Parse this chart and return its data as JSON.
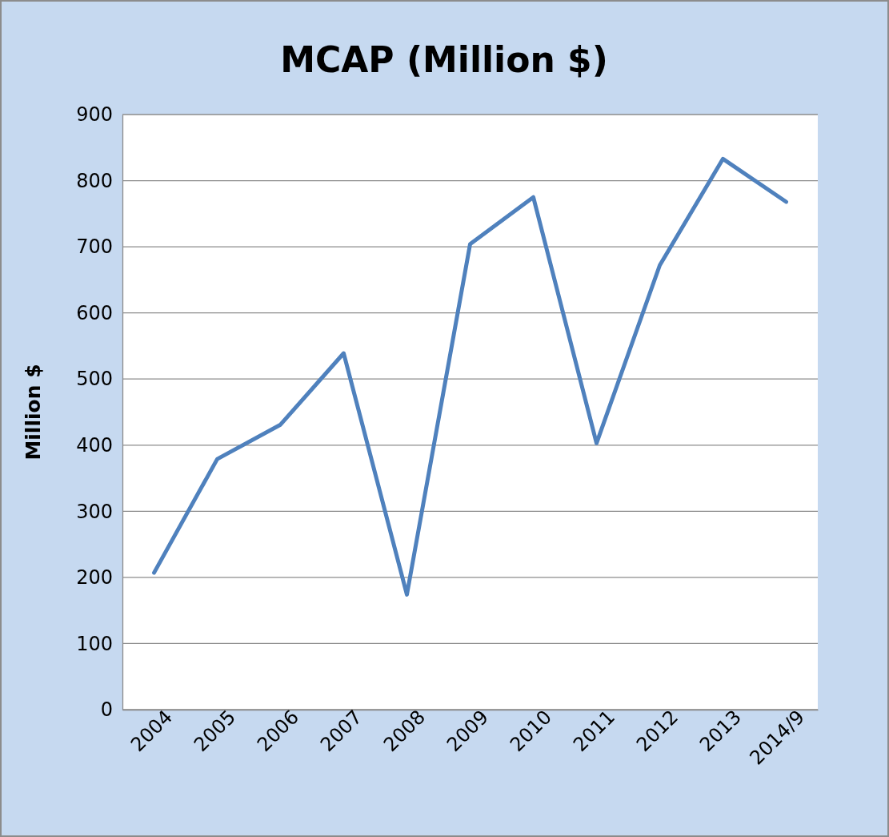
{
  "chart_data": {
    "type": "line",
    "title": "MCAP (Million $)",
    "ylabel": "Million $",
    "categories": [
      "2004",
      "2005",
      "2006",
      "2007",
      "2008",
      "2009",
      "2010",
      "2011",
      "2012",
      "2013",
      "2014/9"
    ],
    "series": [
      {
        "color": "#4f81bd",
        "values": [
          207,
          379,
          431,
          539,
          174,
          704,
          775,
          403,
          672,
          833,
          768
        ]
      }
    ],
    "ylim": [
      0,
      900
    ],
    "yticks": [
      0,
      100,
      200,
      300,
      400,
      500,
      600,
      700,
      800,
      900
    ],
    "grid": "y",
    "marker": "none",
    "line_style": "solid"
  }
}
